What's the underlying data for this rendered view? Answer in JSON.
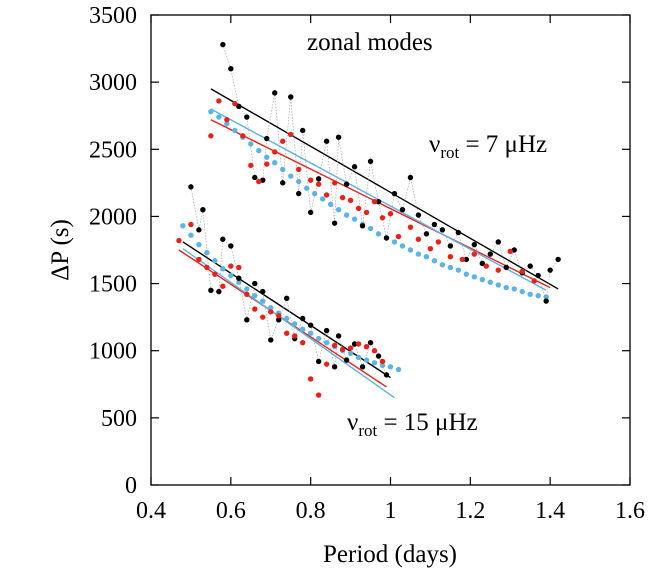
{
  "chart_data": {
    "type": "scatter",
    "title": "",
    "xlabel": "Period (days)",
    "ylabel": "ΔP (s)",
    "xlim": [
      0.4,
      1.6
    ],
    "ylim": [
      0,
      3500
    ],
    "xticks": [
      "0.4",
      "0.6",
      "0.8",
      "1",
      "1.2",
      "1.4",
      "1.6"
    ],
    "yticks": [
      "0",
      "500",
      "1000",
      "1500",
      "2000",
      "2500",
      "3000",
      "3500"
    ],
    "grid": false,
    "legend": "none",
    "annotations": {
      "modes": "zonal modes",
      "rot7": {
        "symbol": "ν",
        "sub": "rot",
        "text": " = 7 μHz"
      },
      "rot15": {
        "symbol": "ν",
        "sub": "rot",
        "text": " = 15 μHz"
      }
    },
    "colors": {
      "black": "#000000",
      "red": "#e8221b",
      "blue": "#5ab4e5"
    },
    "series": [
      {
        "color": "#000000",
        "connect": true,
        "points": [
          [
            0.58,
            3280
          ],
          [
            0.6,
            3100
          ],
          [
            0.62,
            2820
          ],
          [
            0.64,
            2740
          ],
          [
            0.66,
            2290
          ],
          [
            0.68,
            2270
          ],
          [
            0.69,
            2580
          ],
          [
            0.71,
            2920
          ],
          [
            0.73,
            2250
          ],
          [
            0.75,
            2890
          ],
          [
            0.77,
            2170
          ],
          [
            0.78,
            2640
          ],
          [
            0.8,
            2030
          ],
          [
            0.82,
            2280
          ],
          [
            0.84,
            2560
          ],
          [
            0.86,
            1950
          ],
          [
            0.87,
            2590
          ],
          [
            0.89,
            2240
          ],
          [
            0.91,
            2370
          ],
          [
            0.93,
            1930
          ],
          [
            0.95,
            2410
          ],
          [
            0.97,
            2110
          ],
          [
            0.99,
            1840
          ],
          [
            1.01,
            2170
          ],
          [
            1.03,
            2050
          ],
          [
            1.05,
            2290
          ],
          [
            1.07,
            2010
          ],
          [
            1.09,
            1870
          ],
          [
            1.11,
            1940
          ],
          [
            1.13,
            1900
          ],
          [
            1.15,
            1780
          ],
          [
            1.17,
            1880
          ],
          [
            1.19,
            1680
          ],
          [
            1.21,
            1790
          ],
          [
            1.23,
            1650
          ],
          [
            1.25,
            1720
          ],
          [
            1.27,
            1810
          ],
          [
            1.29,
            1620
          ],
          [
            1.31,
            1750
          ],
          [
            1.33,
            1580
          ],
          [
            1.35,
            1630
          ],
          [
            1.37,
            1560
          ],
          [
            1.39,
            1370
          ],
          [
            1.4,
            1600
          ],
          [
            1.42,
            1680
          ]
        ]
      },
      {
        "color": "#000000",
        "connect": true,
        "points": [
          [
            0.5,
            2220
          ],
          [
            0.52,
            1900
          ],
          [
            0.53,
            2050
          ],
          [
            0.55,
            1450
          ],
          [
            0.57,
            1440
          ],
          [
            0.58,
            1830
          ],
          [
            0.6,
            1780
          ],
          [
            0.62,
            1540
          ],
          [
            0.64,
            1230
          ],
          [
            0.66,
            1500
          ],
          [
            0.68,
            1440
          ],
          [
            0.7,
            1080
          ],
          [
            0.72,
            1230
          ],
          [
            0.74,
            1390
          ],
          [
            0.76,
            1090
          ],
          [
            0.78,
            1240
          ],
          [
            0.8,
            1190
          ],
          [
            0.82,
            920
          ],
          [
            0.84,
            1150
          ],
          [
            0.86,
            880
          ],
          [
            0.87,
            1110
          ],
          [
            0.89,
            930
          ],
          [
            0.91,
            1050
          ],
          [
            0.93,
            880
          ],
          [
            0.95,
            1060
          ],
          [
            0.97,
            960
          ],
          [
            0.99,
            820
          ]
        ]
      },
      {
        "color": "#e8221b",
        "connect": false,
        "points": [
          [
            0.55,
            2600
          ],
          [
            0.57,
            2860
          ],
          [
            0.59,
            2720
          ],
          [
            0.61,
            2840
          ],
          [
            0.63,
            2600
          ],
          [
            0.65,
            2380
          ],
          [
            0.67,
            2260
          ],
          [
            0.69,
            2390
          ],
          [
            0.71,
            2480
          ],
          [
            0.73,
            2560
          ],
          [
            0.75,
            2610
          ],
          [
            0.77,
            2350
          ],
          [
            0.8,
            2270
          ],
          [
            0.82,
            2240
          ],
          [
            0.84,
            2160
          ],
          [
            0.86,
            2250
          ],
          [
            0.88,
            2140
          ],
          [
            0.9,
            2120
          ],
          [
            0.92,
            2060
          ],
          [
            0.94,
            2030
          ],
          [
            0.96,
            2110
          ],
          [
            0.98,
            1990
          ],
          [
            1.0,
            2020
          ],
          [
            1.02,
            1850
          ],
          [
            1.05,
            1920
          ],
          [
            1.07,
            1830
          ],
          [
            1.1,
            1760
          ],
          [
            1.12,
            1810
          ],
          [
            1.15,
            1700
          ],
          [
            1.18,
            1680
          ],
          [
            1.21,
            1720
          ],
          [
            1.24,
            1630
          ],
          [
            1.27,
            1600
          ],
          [
            1.3,
            1740
          ],
          [
            1.33,
            1590
          ],
          [
            1.36,
            1520
          ],
          [
            0.47,
            1820
          ],
          [
            0.5,
            1940
          ],
          [
            0.52,
            1680
          ],
          [
            0.54,
            1620
          ],
          [
            0.56,
            1570
          ],
          [
            0.58,
            1480
          ],
          [
            0.6,
            1630
          ],
          [
            0.62,
            1620
          ],
          [
            0.64,
            1420
          ],
          [
            0.66,
            1310
          ],
          [
            0.68,
            1250
          ],
          [
            0.7,
            1290
          ],
          [
            0.72,
            1260
          ],
          [
            0.74,
            1130
          ],
          [
            0.76,
            1110
          ],
          [
            0.78,
            1060
          ],
          [
            0.8,
            790
          ],
          [
            0.82,
            670
          ],
          [
            0.84,
            900
          ],
          [
            0.86,
            1040
          ],
          [
            0.88,
            1010
          ],
          [
            0.9,
            1020
          ],
          [
            0.92,
            1050
          ],
          [
            0.94,
            1030
          ],
          [
            0.96,
            1000
          ],
          [
            0.98,
            920
          ]
        ]
      },
      {
        "color": "#5ab4e5",
        "connect": false,
        "points": [
          [
            0.55,
            2780
          ],
          [
            0.57,
            2740
          ],
          [
            0.59,
            2690
          ],
          [
            0.61,
            2640
          ],
          [
            0.63,
            2590
          ],
          [
            0.65,
            2540
          ],
          [
            0.67,
            2490
          ],
          [
            0.69,
            2440
          ],
          [
            0.71,
            2400
          ],
          [
            0.73,
            2350
          ],
          [
            0.75,
            2300
          ],
          [
            0.77,
            2260
          ],
          [
            0.79,
            2210
          ],
          [
            0.81,
            2170
          ],
          [
            0.83,
            2130
          ],
          [
            0.85,
            2090
          ],
          [
            0.87,
            2050
          ],
          [
            0.89,
            2010
          ],
          [
            0.91,
            1980
          ],
          [
            0.93,
            1940
          ],
          [
            0.95,
            1910
          ],
          [
            0.97,
            1870
          ],
          [
            0.99,
            1840
          ],
          [
            1.01,
            1810
          ],
          [
            1.03,
            1780
          ],
          [
            1.05,
            1750
          ],
          [
            1.07,
            1720
          ],
          [
            1.09,
            1700
          ],
          [
            1.11,
            1670
          ],
          [
            1.13,
            1640
          ],
          [
            1.15,
            1620
          ],
          [
            1.17,
            1600
          ],
          [
            1.19,
            1570
          ],
          [
            1.21,
            1550
          ],
          [
            1.23,
            1530
          ],
          [
            1.25,
            1510
          ],
          [
            1.27,
            1490
          ],
          [
            1.29,
            1470
          ],
          [
            1.31,
            1460
          ],
          [
            1.33,
            1440
          ],
          [
            1.35,
            1420
          ],
          [
            1.37,
            1410
          ],
          [
            1.39,
            1400
          ],
          [
            0.48,
            1930
          ],
          [
            0.5,
            1860
          ],
          [
            0.52,
            1790
          ],
          [
            0.54,
            1730
          ],
          [
            0.56,
            1670
          ],
          [
            0.58,
            1610
          ],
          [
            0.6,
            1560
          ],
          [
            0.62,
            1510
          ],
          [
            0.64,
            1460
          ],
          [
            0.66,
            1410
          ],
          [
            0.68,
            1370
          ],
          [
            0.7,
            1320
          ],
          [
            0.72,
            1280
          ],
          [
            0.74,
            1240
          ],
          [
            0.76,
            1200
          ],
          [
            0.78,
            1160
          ],
          [
            0.8,
            1130
          ],
          [
            0.82,
            1090
          ],
          [
            0.84,
            1060
          ],
          [
            0.86,
            1030
          ],
          [
            0.88,
            1000
          ],
          [
            0.9,
            980
          ],
          [
            0.92,
            950
          ],
          [
            0.94,
            930
          ],
          [
            0.96,
            910
          ],
          [
            0.98,
            890
          ],
          [
            1.0,
            880
          ],
          [
            1.02,
            860
          ]
        ]
      }
    ],
    "fit_lines": [
      {
        "color": "#000000",
        "x": [
          0.55,
          1.42
        ],
        "y": [
          2950,
          1460
        ]
      },
      {
        "color": "#e8221b",
        "x": [
          0.55,
          1.4
        ],
        "y": [
          2720,
          1470
        ]
      },
      {
        "color": "#5ab4e5",
        "x": [
          0.55,
          1.39
        ],
        "y": [
          2800,
          1450
        ]
      },
      {
        "color": "#000000",
        "x": [
          0.48,
          1.0
        ],
        "y": [
          1810,
          800
        ]
      },
      {
        "color": "#e8221b",
        "x": [
          0.47,
          0.99
        ],
        "y": [
          1750,
          730
        ]
      },
      {
        "color": "#5ab4e5",
        "x": [
          0.48,
          1.01
        ],
        "y": [
          1760,
          650
        ]
      }
    ]
  }
}
